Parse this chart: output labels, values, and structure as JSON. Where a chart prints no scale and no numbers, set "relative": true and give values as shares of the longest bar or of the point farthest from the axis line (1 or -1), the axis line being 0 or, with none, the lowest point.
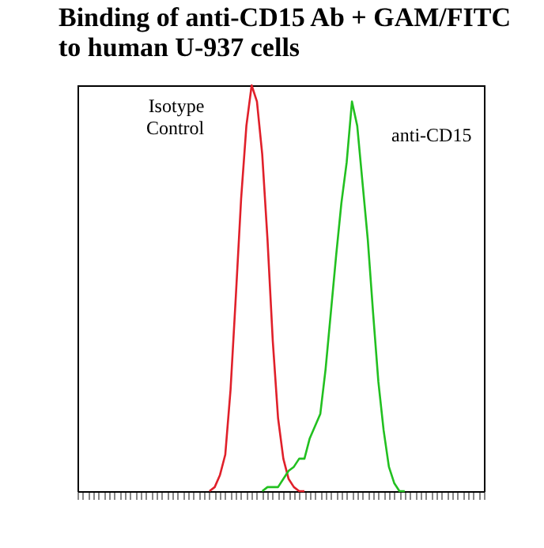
{
  "chart_data": {
    "type": "line",
    "title": [
      "Binding of anti-CD15 Ab + GAM/FITC",
      "to human U-937 cells"
    ],
    "relative": true,
    "legend": false,
    "tick_labels": false,
    "grid": false,
    "categories": [
      null,
      null,
      null,
      null,
      null,
      null,
      null,
      null,
      null,
      null,
      null,
      null,
      null,
      null,
      null,
      null,
      null,
      null,
      null,
      null,
      null,
      null,
      null,
      null,
      null,
      null,
      null,
      null,
      null,
      null,
      null,
      null,
      null,
      null,
      null,
      null,
      null,
      null,
      null,
      null,
      null,
      null,
      null,
      null,
      null,
      null,
      null,
      null,
      null,
      null,
      null,
      null,
      null,
      null,
      null,
      null,
      null,
      null,
      null,
      null,
      null,
      null,
      null,
      null,
      null,
      null,
      null,
      null,
      null,
      null,
      null,
      null,
      null,
      null,
      null,
      null,
      null,
      null
    ],
    "series": [
      {
        "name": "Isotype Control",
        "color": "#e0202a",
        "values": [
          null,
          null,
          null,
          null,
          null,
          null,
          null,
          null,
          null,
          null,
          null,
          null,
          null,
          null,
          null,
          null,
          null,
          null,
          null,
          null,
          null,
          null,
          null,
          null,
          null,
          0,
          0.01,
          0.04,
          0.09,
          0.25,
          0.48,
          0.72,
          0.9,
          1,
          0.96,
          0.83,
          0.62,
          0.37,
          0.18,
          0.08,
          0.03,
          0.01,
          0,
          0,
          null,
          null,
          null,
          null,
          null,
          null,
          null,
          null,
          null,
          null,
          null,
          null,
          null,
          null,
          null,
          null,
          null,
          null,
          null,
          null,
          null,
          null,
          null,
          null,
          null,
          null,
          null,
          null,
          null,
          null,
          null,
          null,
          null,
          null
        ]
      },
      {
        "name": "anti-CD15",
        "color": "#22c020",
        "values": [
          null,
          null,
          null,
          null,
          null,
          null,
          null,
          null,
          null,
          null,
          null,
          null,
          null,
          null,
          null,
          null,
          null,
          null,
          null,
          null,
          null,
          null,
          null,
          null,
          null,
          null,
          null,
          null,
          null,
          null,
          null,
          null,
          null,
          null,
          null,
          0,
          0.01,
          0.01,
          0.01,
          0.03,
          0.05,
          0.06,
          0.08,
          0.08,
          0.13,
          0.16,
          0.19,
          0.3,
          0.44,
          0.58,
          0.71,
          0.81,
          0.96,
          0.9,
          0.76,
          0.62,
          0.44,
          0.27,
          0.15,
          0.06,
          0.02,
          0,
          0,
          null,
          null,
          null,
          null,
          null,
          null,
          null,
          null,
          null,
          null,
          null,
          null,
          null,
          null,
          null
        ]
      }
    ]
  }
}
